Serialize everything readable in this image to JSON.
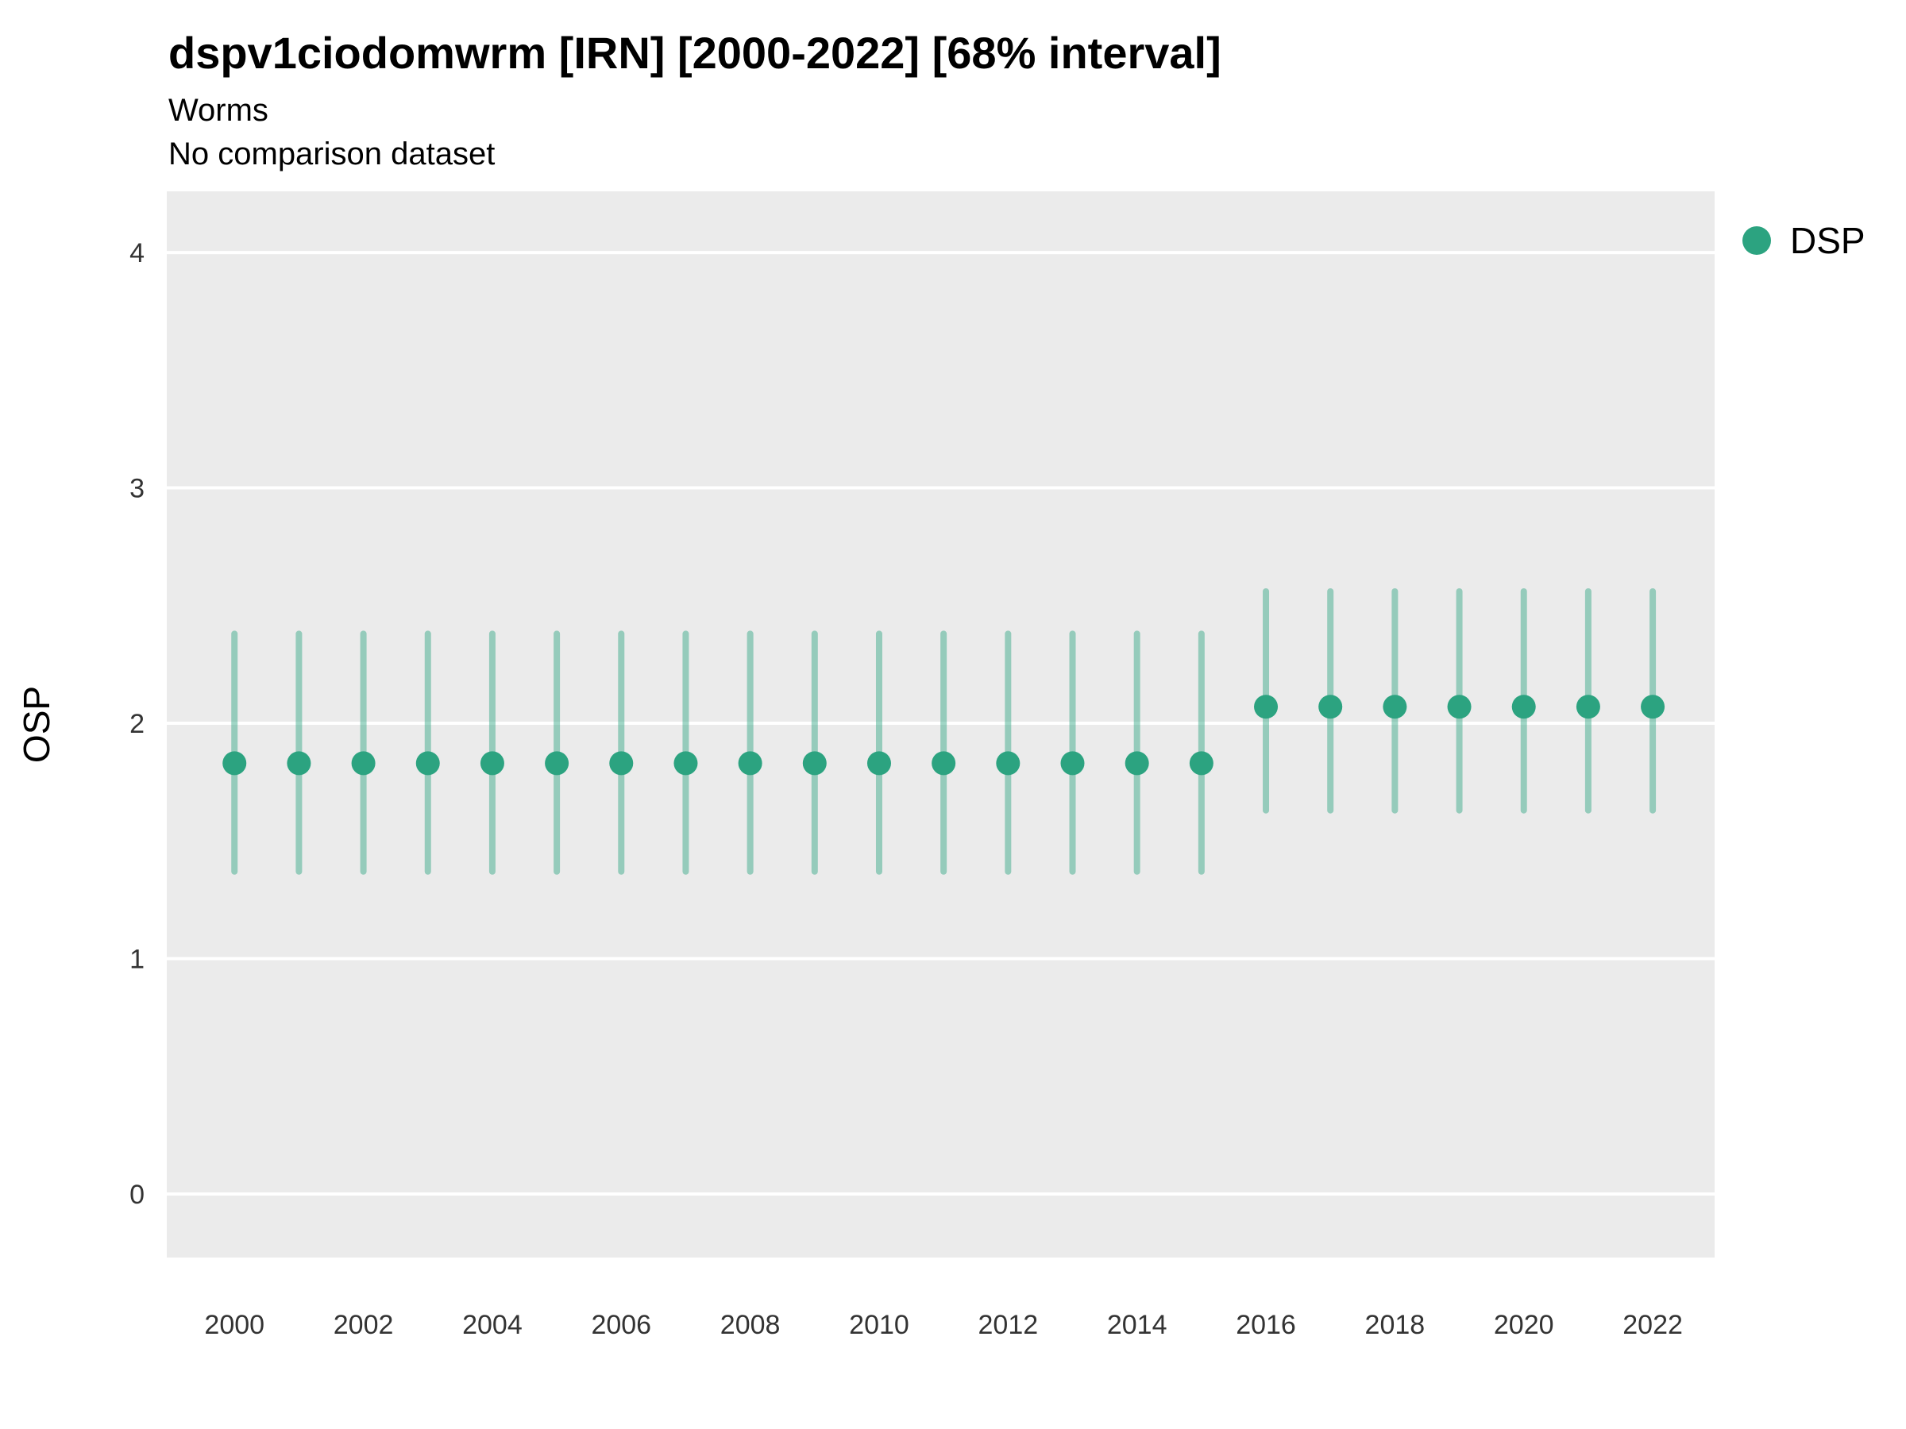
{
  "header": {
    "title": "dspv1ciodomwrm [IRN] [2000-2022] [68% interval]",
    "subtitle1": "Worms",
    "subtitle2": "No comparison dataset"
  },
  "legend": {
    "label": "DSP"
  },
  "axes": {
    "y_label": "OSP",
    "y_ticks": [
      0,
      1,
      2,
      3,
      4
    ],
    "x_tick_labels": [
      "2000",
      "2002",
      "2004",
      "2006",
      "2008",
      "2010",
      "2012",
      "2014",
      "2016",
      "2018",
      "2020",
      "2022"
    ]
  },
  "colors": {
    "point": "#2CA380",
    "interval": "#2CA380",
    "interval_opacity": 0.45,
    "panel_bg": "#EBEBEB",
    "gridline": "#FFFFFF",
    "tick_label": "#333333",
    "axis_title": "#000000"
  },
  "chart_data": {
    "type": "scatter",
    "title": "dspv1ciodomwrm [IRN] [2000-2022] [68% interval]",
    "subtitle": "Worms",
    "note": "No comparison dataset",
    "xlabel": "",
    "ylabel": "OSP",
    "interval": "68%",
    "xlim": [
      1998.95,
      2022.96
    ],
    "ylim": [
      -0.27,
      4.26
    ],
    "x_breaks": [
      2000,
      2002,
      2004,
      2006,
      2008,
      2010,
      2012,
      2014,
      2016,
      2018,
      2020,
      2022
    ],
    "y_breaks": [
      0,
      1,
      2,
      3,
      4
    ],
    "legend_position": "right",
    "grid": "horizontal-major",
    "x": [
      2000,
      2001,
      2002,
      2003,
      2004,
      2005,
      2006,
      2007,
      2008,
      2009,
      2010,
      2011,
      2012,
      2013,
      2014,
      2015,
      2016,
      2017,
      2018,
      2019,
      2020,
      2021,
      2022
    ],
    "series": [
      {
        "name": "DSP",
        "values": [
          1.83,
          1.83,
          1.83,
          1.83,
          1.83,
          1.83,
          1.83,
          1.83,
          1.83,
          1.83,
          1.83,
          1.83,
          1.83,
          1.83,
          1.83,
          1.83,
          2.07,
          2.07,
          2.07,
          2.07,
          2.07,
          2.07,
          2.07
        ],
        "lower": [
          1.37,
          1.37,
          1.37,
          1.37,
          1.37,
          1.37,
          1.37,
          1.37,
          1.37,
          1.37,
          1.37,
          1.37,
          1.37,
          1.37,
          1.37,
          1.37,
          1.63,
          1.63,
          1.63,
          1.63,
          1.63,
          1.63,
          1.63
        ],
        "upper": [
          2.38,
          2.38,
          2.38,
          2.38,
          2.38,
          2.38,
          2.38,
          2.38,
          2.38,
          2.38,
          2.38,
          2.38,
          2.38,
          2.38,
          2.38,
          2.38,
          2.56,
          2.56,
          2.56,
          2.56,
          2.56,
          2.56,
          2.56
        ],
        "color": "#2CA380"
      }
    ]
  }
}
